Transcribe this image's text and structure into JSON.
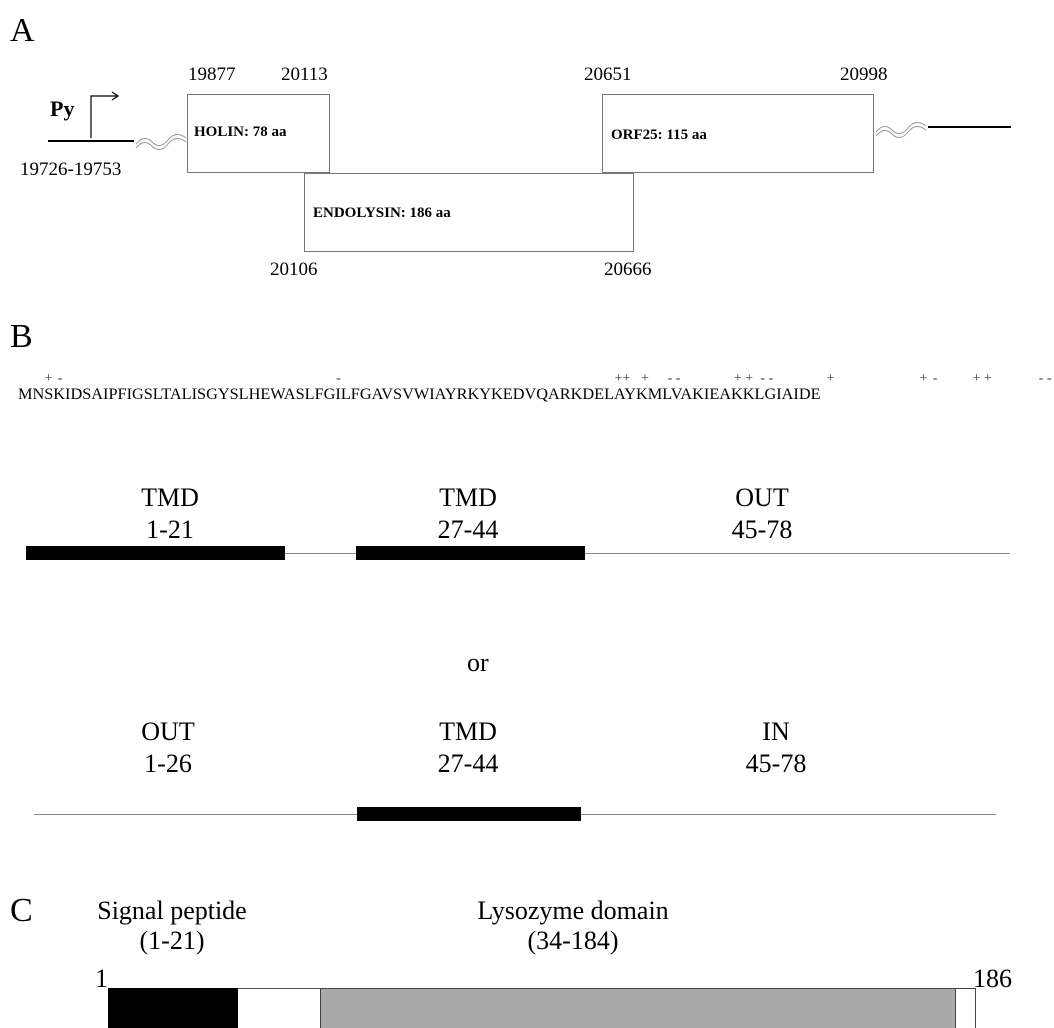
{
  "panels": {
    "a": "A",
    "b": "B",
    "c": "C"
  },
  "panel_a": {
    "promoter_label": "Py",
    "promoter_coord": "19726-19753",
    "holin": {
      "label": "HOLIN: 78 aa",
      "start": "19877",
      "end": "20113"
    },
    "endolysin": {
      "label": "ENDOLYSIN: 186 aa",
      "start": "20106",
      "end": "20666"
    },
    "orf25": {
      "label": "ORF25: 115 aa",
      "start": "20651",
      "end": "20998"
    },
    "icons": [
      "promoter-arrow-icon",
      "break-wave-icon"
    ]
  },
  "panel_b": {
    "charges": [
      {
        "text": "+",
        "column": 3
      },
      {
        "text": "-",
        "column": 4
      },
      {
        "text": "-",
        "column": 25
      },
      {
        "text": "++",
        "column": 46
      },
      {
        "text": "+",
        "column": 48
      },
      {
        "text": "- -",
        "column": 50
      },
      {
        "text": "+ +",
        "column": 55
      },
      {
        "text": "- -",
        "column": 57
      },
      {
        "text": "+",
        "column": 62
      },
      {
        "text": "+",
        "column": 69
      },
      {
        "text": "-",
        "column": 70
      },
      {
        "text": "+ +",
        "column": 73
      },
      {
        "text": "- -",
        "column": 78
      }
    ],
    "sequence": "MNSKIDSAIPFIGSLTALISGYSLHEWASLFGILFGAVSVWIAYRKYKEDVQARKDELAYKMLVAKIEAKKLGIAIDE",
    "topology1": {
      "regions": [
        {
          "name": "TMD",
          "range": "1-21"
        },
        {
          "name": "TMD",
          "range": "27-44"
        },
        {
          "name": "OUT",
          "range": "45-78"
        }
      ]
    },
    "or_label": "or",
    "topology2": {
      "regions": [
        {
          "name": "OUT",
          "range": "1-26"
        },
        {
          "name": "TMD",
          "range": "27-44"
        },
        {
          "name": "IN",
          "range": "45-78"
        }
      ]
    },
    "protein_length": 78
  },
  "panel_c": {
    "signal_peptide_label": "Signal peptide",
    "signal_peptide_range": "(1-21)",
    "lysozyme_label": "Lysozyme domain",
    "lysozyme_range": "(34-184)",
    "start": "1",
    "end": "186",
    "colors": {
      "signal": "#000000",
      "lysozyme": "#a9a9a9",
      "linker": "#ffffff"
    }
  }
}
